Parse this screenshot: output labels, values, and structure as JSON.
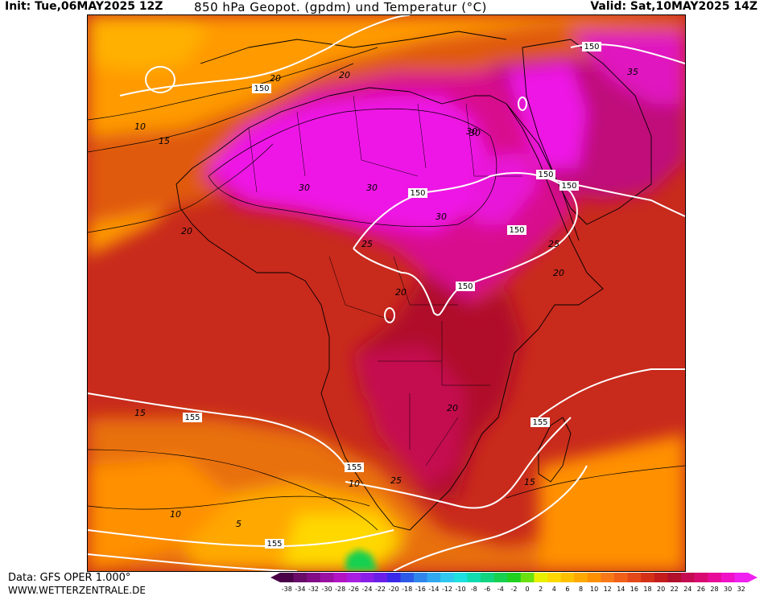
{
  "header": {
    "init": "Init: Tue,06MAY2025 12Z",
    "title": "850 hPa Geopot. (gpdm) und Temperatur (°C)",
    "valid": "Valid: Sat,10MAY2025 14Z"
  },
  "footer": {
    "data_source": "Data: GFS OPER 1.000°",
    "website": "WWW.WETTERZENTRALE.DE"
  },
  "map": {
    "geopotential_labels": [
      "150",
      "150",
      "150",
      "150",
      "150",
      "150",
      "150",
      "155",
      "155",
      "155",
      "155"
    ],
    "temperature_labels": [
      "20",
      "20",
      "10",
      "15",
      "30",
      "30",
      "30",
      "30",
      "35",
      "25",
      "25",
      "20",
      "20",
      "20",
      "20",
      "15",
      "15",
      "10",
      "10",
      "5",
      "25",
      "30"
    ]
  },
  "legend": {
    "ticks": [
      "-38",
      "-34",
      "-32",
      "-30",
      "-28",
      "-26",
      "-24",
      "-22",
      "-20",
      "-18",
      "-16",
      "-14",
      "-12",
      "-10",
      "-8",
      "-6",
      "-4",
      "-2",
      "0",
      "2",
      "4",
      "6",
      "8",
      "10",
      "12",
      "14",
      "16",
      "18",
      "20",
      "22",
      "24",
      "26",
      "28",
      "30",
      "32"
    ],
    "colors": [
      "#4a0048",
      "#6a0a68",
      "#820c86",
      "#9a10a2",
      "#b214c4",
      "#a81ee0",
      "#8a1ee8",
      "#6a1ee8",
      "#3a28e8",
      "#2c5ae8",
      "#2e86ec",
      "#30a8f0",
      "#2ec8f0",
      "#1ee0e0",
      "#10dcb0",
      "#10d480",
      "#18d050",
      "#20d020",
      "#6ae010",
      "#e8f000",
      "#ffd800",
      "#ffc000",
      "#ffa800",
      "#ff9000",
      "#f87818",
      "#f06018",
      "#e44818",
      "#d43018",
      "#c41c1c",
      "#b0102c",
      "#c40a50",
      "#d80a70",
      "#e80a98",
      "#f010c8",
      "#f020f0"
    ]
  },
  "colors": {
    "hot": "#e010e0",
    "warm": "#c0103a",
    "mild": "#d84010",
    "cool": "#ff9a00",
    "cold": "#ffe000",
    "geopotential_line": "#ffffff"
  }
}
